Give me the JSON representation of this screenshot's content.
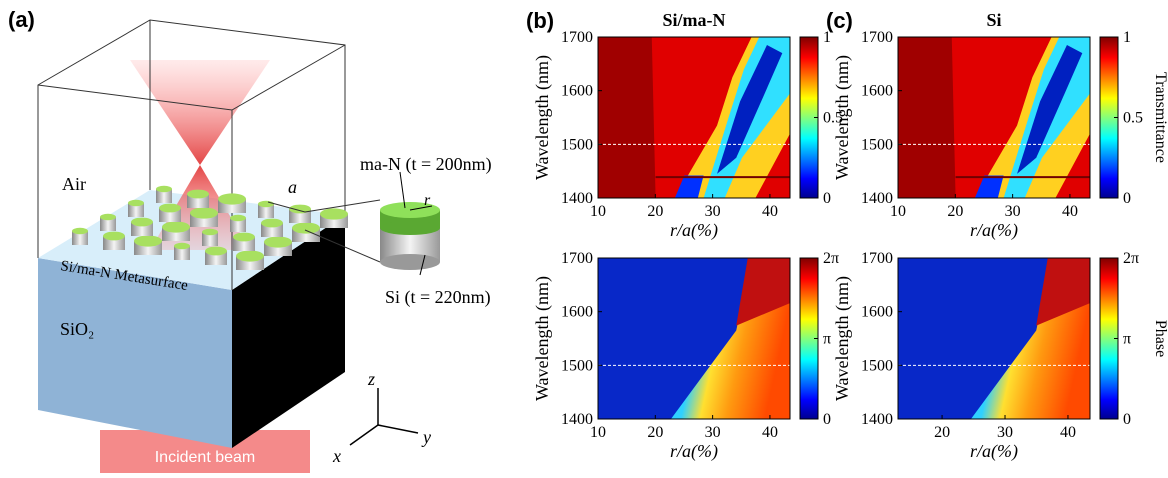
{
  "panel_a": {
    "label": "(a)",
    "air": "Air",
    "substrate": "SiO₂",
    "metasurface": "Si/ma-N Metasurface",
    "period": "a",
    "radius": "r",
    "top_layer": "ma-N (t = 200nm)",
    "bottom_layer": "Si (t = 220nm)",
    "axis_z": "z",
    "axis_x": "x",
    "axis_y": "y",
    "beam": "Incident beam"
  },
  "panels": [
    {
      "label": "(b)",
      "title": "Si/ma-N",
      "plots": [
        {
          "xlabel": "r/a(%)",
          "ylabel": "Wavelength (nm)",
          "xlim": [
            10,
            43.5
          ],
          "xticks": [
            10,
            20,
            30,
            40
          ],
          "ylim": [
            1400,
            1700
          ],
          "yticks": [
            1400,
            1500,
            1600,
            1700
          ],
          "colorbar": {
            "lim": [
              0,
              1
            ],
            "ticks": [
              0,
              0.5,
              1
            ]
          }
        },
        {
          "xlabel": "r/a(%)",
          "ylabel": "Wavelength (nm)",
          "xlim": [
            10,
            43.5
          ],
          "xticks": [
            10,
            20,
            30,
            40
          ],
          "ylim": [
            1400,
            1700
          ],
          "yticks": [
            1400,
            1500,
            1600,
            1700
          ],
          "colorbar": {
            "lim": [
              0,
              6.2832
            ],
            "ticks": [
              0,
              {
                "value": 3.1416,
                "label": "π"
              },
              {
                "value": 6.2832,
                "label": "2π"
              }
            ]
          }
        }
      ]
    },
    {
      "label": "(c)",
      "title": "Si",
      "plots": [
        {
          "xlabel": "r/a(%)",
          "ylabel": "Wavelength (nm)",
          "xlim": [
            10,
            43.5
          ],
          "xticks": [
            10,
            20,
            30,
            40
          ],
          "ylim": [
            1400,
            1700
          ],
          "yticks": [
            1400,
            1500,
            1600,
            1700
          ],
          "colorbar": {
            "lim": [
              0,
              1
            ],
            "ticks": [
              0,
              0.5,
              1
            ],
            "label": "Transmittance"
          }
        },
        {
          "xlabel": "r/a(%)",
          "ylabel": "Wavelength (nm)",
          "xlim": [
            13,
            43.5
          ],
          "xticks": [
            20,
            30,
            40
          ],
          "ylim": [
            1400,
            1700
          ],
          "yticks": [
            1400,
            1500,
            1600,
            1700
          ],
          "colorbar": {
            "lim": [
              0,
              6.2832
            ],
            "ticks": [
              0,
              {
                "value": 3.1416,
                "label": "π"
              },
              {
                "value": 6.2832,
                "label": "2π"
              }
            ],
            "label": "Phase"
          }
        }
      ]
    }
  ]
}
